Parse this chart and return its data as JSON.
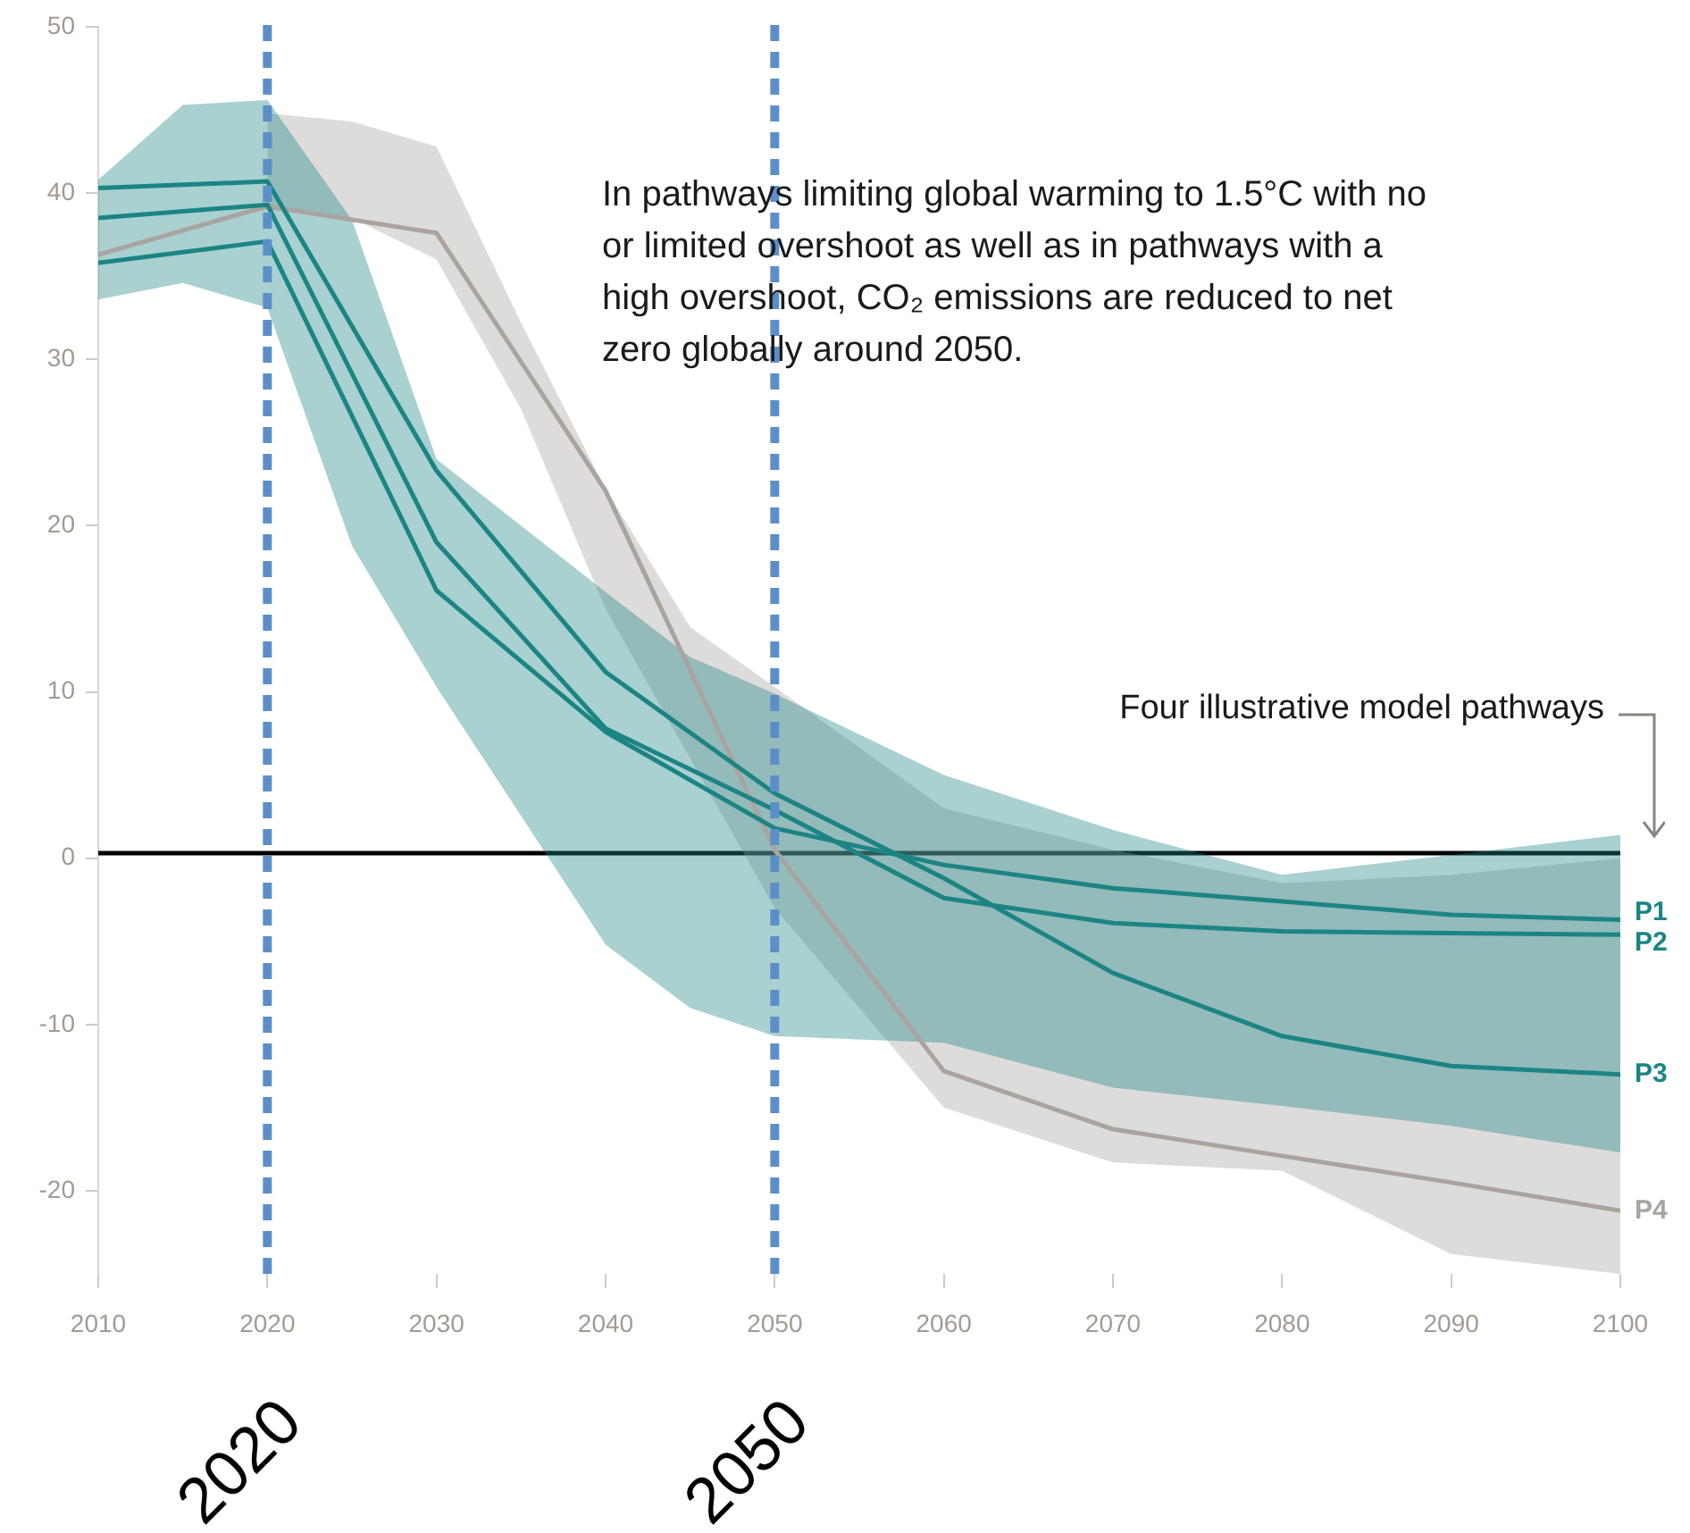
{
  "chart_data": {
    "type": "line",
    "xlim": [
      2010,
      2100
    ],
    "xticks": [
      2010,
      2020,
      2030,
      2040,
      2050,
      2060,
      2070,
      2080,
      2090,
      2100
    ],
    "ylim": [
      -25,
      50
    ],
    "yticks": [
      -20,
      -10,
      0,
      10,
      20,
      30,
      40,
      50
    ],
    "grid": false,
    "legend": false,
    "marker": "none",
    "line_style": "solid",
    "series": [
      {
        "name": "P1",
        "color": "#1b8584",
        "x": [
          2010,
          2020,
          2030,
          2040,
          2050,
          2060,
          2070,
          2080,
          2090,
          2100
        ],
        "values": [
          35.8,
          37.1,
          16.1,
          7.6,
          1.8,
          -0.4,
          -1.8,
          -2.6,
          -3.4,
          -3.7
        ]
      },
      {
        "name": "P2",
        "color": "#1b8584",
        "x": [
          2010,
          2020,
          2030,
          2040,
          2050,
          2060,
          2070,
          2080,
          2090,
          2100
        ],
        "values": [
          38.5,
          39.3,
          19.0,
          7.8,
          2.9,
          -2.4,
          -3.9,
          -4.4,
          -4.5,
          -4.6
        ]
      },
      {
        "name": "P3",
        "color": "#1b8584",
        "x": [
          2010,
          2015,
          2020,
          2025,
          2030,
          2040,
          2045,
          2050,
          2060,
          2070,
          2080,
          2090,
          2100
        ],
        "values": [
          40.3,
          null,
          40.7,
          null,
          23.3,
          11.2,
          null,
          3.9,
          -1.2,
          -6.9,
          -10.7,
          -12.5,
          -13.0
        ],
        "lower": [
          33.6,
          34.6,
          33.1,
          18.8,
          10.3,
          -5.2,
          -9.0,
          -10.7,
          -11.1,
          -13.8,
          -14.9,
          -16.1,
          -17.7
        ],
        "upper": [
          40.8,
          45.3,
          45.6,
          38.4,
          24.0,
          16.0,
          12.1,
          9.9,
          5.0,
          1.7,
          -1.0,
          0.2,
          1.4
        ]
      },
      {
        "name": "P4",
        "color": "#a9a49f",
        "x": [
          2010,
          2020,
          2025,
          2030,
          2035,
          2040,
          2045,
          2050,
          2060,
          2070,
          2080,
          2090,
          2100
        ],
        "values": [
          36.3,
          39.2,
          null,
          37.6,
          null,
          22.1,
          null,
          0.5,
          -12.8,
          -16.3,
          -17.9,
          -19.5,
          -21.2
        ],
        "lower": [
          null,
          39.0,
          38.5,
          36.0,
          27.0,
          15.0,
          6.0,
          -3.0,
          -15.0,
          -18.3,
          -18.8,
          -23.8,
          -25
        ],
        "upper": [
          null,
          44.8,
          44.3,
          42.8,
          32.2,
          22.2,
          13.9,
          10.3,
          3.0,
          0.5,
          -1.5,
          -1.0,
          0.0
        ]
      }
    ],
    "ref_lines": [
      {
        "axis": "y",
        "value": 0.3,
        "color": "#000000",
        "line_style": "solid"
      },
      {
        "axis": "x",
        "value": 2020,
        "label": "2020",
        "color": "#5b8fc9",
        "line_style": "dashed"
      },
      {
        "axis": "x",
        "value": 2050,
        "label": "2050",
        "color": "#5b8fc9",
        "line_style": "dashed"
      }
    ],
    "annotations": [
      "In pathways limiting global warming to 1.5°C with no or limited overshoot as well as in pathways with a high overshoot, CO₂ emissions are reduced to net zero globally around 2050.",
      "Four illustrative model pathways"
    ]
  }
}
